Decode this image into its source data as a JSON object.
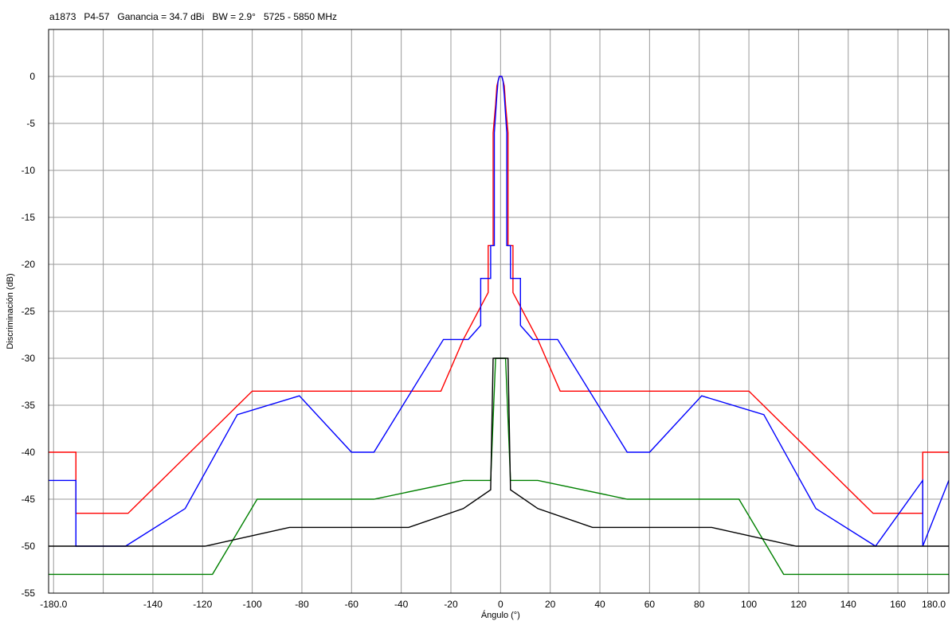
{
  "chart_data": {
    "type": "line",
    "title": "a1873   P4-57   Ganancia = 34.7 dBi   BW = 2.9°   5725 - 5850 MHz",
    "xlabel": "Ángulo (°)",
    "ylabel": "Discriminación (dB)",
    "xlim": [
      -182,
      180.5
    ],
    "ylim": [
      -55,
      5
    ],
    "grid": true,
    "xticks": [
      -180,
      -140,
      -120,
      -100,
      -80,
      -60,
      -40,
      -20,
      0,
      20,
      40,
      60,
      80,
      100,
      120,
      140,
      160,
      180
    ],
    "xtick_labels": [
      "-180.0",
      "-140",
      "-120",
      "-100",
      "-80",
      "-60",
      "-40",
      "-20",
      "0",
      "20",
      "40",
      "60",
      "80",
      "100",
      "120",
      "140",
      "160",
      "180.0"
    ],
    "xgrid": [
      -180,
      -160,
      -140,
      -120,
      -100,
      -80,
      -60,
      -40,
      -20,
      0,
      20,
      40,
      60,
      80,
      100,
      120,
      140,
      160,
      172
    ],
    "yticks": [
      0,
      -5,
      -10,
      -15,
      -20,
      -25,
      -30,
      -35,
      -40,
      -45,
      -50,
      -55
    ],
    "ytick_labels": [
      "0",
      "-5",
      "-10",
      "-15",
      "-20",
      "-25",
      "-30",
      "-35",
      "-40",
      "-45",
      "-50",
      "-55"
    ],
    "series": [
      {
        "color": "#ff0000",
        "x": [
          -182,
          -171,
          -171,
          -150,
          -100,
          -24,
          -15,
          -5,
          -5,
          -3,
          -3,
          -2,
          -1.5,
          -1,
          -0.5,
          0,
          0.5,
          1,
          1.5,
          2,
          3,
          3,
          5,
          5,
          15,
          24,
          100,
          150,
          170,
          170,
          180.5
        ],
        "y": [
          -40,
          -40,
          -46.5,
          -46.5,
          -33.5,
          -33.5,
          -28,
          -23,
          -18,
          -18,
          -6,
          -3,
          -1,
          -0.5,
          0,
          0,
          0,
          -0.5,
          -1,
          -3,
          -6,
          -18,
          -18,
          -23,
          -28,
          -33.5,
          -33.5,
          -46.5,
          -46.5,
          -40,
          -40
        ]
      },
      {
        "color": "#0000ff",
        "x": [
          -182,
          -171,
          -171,
          -151,
          -127,
          -106,
          -81,
          -60,
          -51,
          -23,
          -13,
          -8,
          -8,
          -4,
          -4,
          -2.5,
          -2.5,
          -1.5,
          -1,
          -0.5,
          0,
          0.5,
          1,
          1.5,
          2.5,
          2.5,
          4,
          4,
          8,
          8,
          13,
          23,
          51,
          60,
          81,
          106,
          127,
          151,
          170,
          170,
          180.5
        ],
        "y": [
          -43,
          -43,
          -50,
          -50,
          -46,
          -36,
          -34,
          -40,
          -40,
          -28,
          -28,
          -26.5,
          -21.5,
          -21.5,
          -18,
          -18,
          -6,
          -2,
          -0.5,
          0,
          0,
          0,
          -0.5,
          -2,
          -6,
          -18,
          -18,
          -21.5,
          -21.5,
          -26.5,
          -28,
          -28,
          -40,
          -40,
          -34,
          -36,
          -46,
          -50,
          -43,
          -50,
          -43
        ]
      },
      {
        "color": "#008000",
        "x": [
          -182,
          -116,
          -98,
          -51,
          -15,
          -4,
          -2,
          2,
          4,
          15,
          51,
          96,
          114,
          180.5
        ],
        "y": [
          -53,
          -53,
          -45,
          -45,
          -43,
          -43,
          -30,
          -30,
          -43,
          -43,
          -45,
          -45,
          -53,
          -53
        ]
      },
      {
        "color": "#000000",
        "x": [
          -182,
          -119,
          -85,
          -37,
          -15,
          -4,
          -3,
          -2,
          2,
          3,
          4,
          15,
          37,
          85,
          119,
          180.5
        ],
        "y": [
          -50,
          -50,
          -48,
          -48,
          -46,
          -44,
          -30,
          -30,
          -30,
          -30,
          -44,
          -46,
          -48,
          -48,
          -50,
          -50
        ]
      }
    ]
  }
}
